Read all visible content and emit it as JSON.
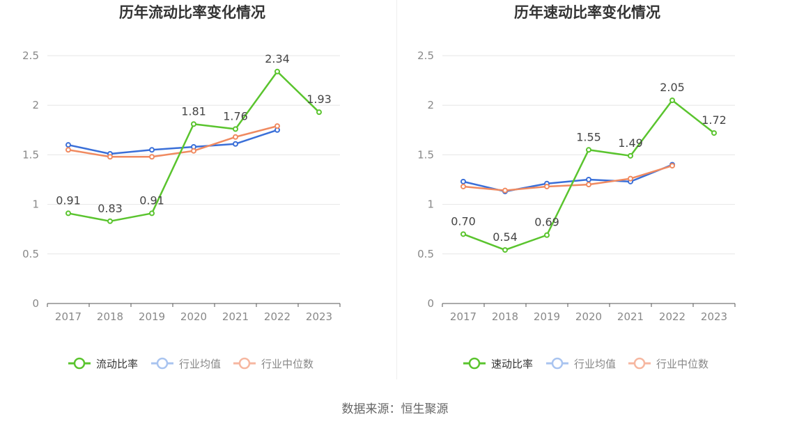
{
  "chart_data": [
    {
      "type": "line",
      "title": "历年流动比率变化情况",
      "categories": [
        "2017",
        "2018",
        "2019",
        "2020",
        "2021",
        "2022",
        "2023"
      ],
      "ylim": [
        0,
        2.5
      ],
      "yticks": [
        "0",
        "0.5",
        "1",
        "1.5",
        "2",
        "2.5"
      ],
      "ytick_values": [
        0,
        0.5,
        1,
        1.5,
        2,
        2.5
      ],
      "series": [
        {
          "name": "流动比率",
          "color": "#5ac42e",
          "values": [
            0.91,
            0.83,
            0.91,
            1.81,
            1.76,
            2.34,
            1.93
          ],
          "labels": [
            "0.91",
            "0.83",
            "0.91",
            "1.81",
            "1.76",
            "2.34",
            "1.93"
          ]
        },
        {
          "name": "行业均值",
          "color": "#3a6fd8",
          "values": [
            1.6,
            1.51,
            1.55,
            1.58,
            1.61,
            1.75,
            null
          ]
        },
        {
          "name": "行业中位数",
          "color": "#f08a60",
          "values": [
            1.55,
            1.48,
            1.48,
            1.54,
            1.68,
            1.79,
            null
          ]
        }
      ]
    },
    {
      "type": "line",
      "title": "历年速动比率变化情况",
      "categories": [
        "2017",
        "2018",
        "2019",
        "2020",
        "2021",
        "2022",
        "2023"
      ],
      "ylim": [
        0,
        2.5
      ],
      "yticks": [
        "0",
        "0.5",
        "1",
        "1.5",
        "2",
        "2.5"
      ],
      "ytick_values": [
        0,
        0.5,
        1,
        1.5,
        2,
        2.5
      ],
      "series": [
        {
          "name": "速动比率",
          "color": "#5ac42e",
          "values": [
            0.7,
            0.54,
            0.69,
            1.55,
            1.49,
            2.05,
            1.72
          ],
          "labels": [
            "0.70",
            "0.54",
            "0.69",
            "1.55",
            "1.49",
            "2.05",
            "1.72"
          ]
        },
        {
          "name": "行业均值",
          "color": "#3a6fd8",
          "values": [
            1.23,
            1.13,
            1.21,
            1.25,
            1.23,
            1.4,
            null
          ]
        },
        {
          "name": "行业中位数",
          "color": "#f08a60",
          "values": [
            1.18,
            1.14,
            1.18,
            1.2,
            1.26,
            1.39,
            null
          ]
        }
      ]
    }
  ],
  "legend_colors": {
    "流动比率": "#5ac42e",
    "速动比率": "#5ac42e",
    "行业均值": "#a9c4f0",
    "行业中位数": "#f6b7a0"
  },
  "source": "数据来源：恒生聚源"
}
